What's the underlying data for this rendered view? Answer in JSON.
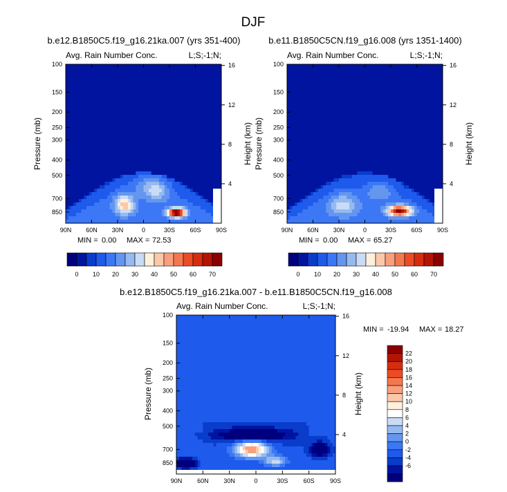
{
  "figure_title": "DJF",
  "colors": {
    "frame": "#000000",
    "bg": "#ffffff"
  },
  "chart_data": [
    {
      "type": "heatmap",
      "id": "panel1",
      "title": "b.e12.B1850C5.f19_g16.21ka.007 (yrs 351-400)",
      "subtitle_left": "Avg. Rain Number Conc.",
      "subtitle_right": "L;S;-1;N;",
      "ylabel": "Pressure (mb)",
      "ylabel_right": "Height (km)",
      "xticks": [
        "90N",
        "60N",
        "30N",
        "0",
        "30S",
        "60S",
        "90S"
      ],
      "x_values": [
        90,
        60,
        30,
        0,
        -30,
        -60,
        -90
      ],
      "pressure_ticks": [
        100,
        150,
        200,
        250,
        300,
        400,
        500,
        700,
        850
      ],
      "height_ticks": [
        16,
        12,
        8,
        4
      ],
      "ylim": [
        100,
        1000
      ],
      "stats": {
        "min_label": "MIN =",
        "min": "0.00",
        "max_label": "MAX =",
        "max": "72.53"
      },
      "features": [
        {
          "kind": "envelope",
          "lat_min": -70,
          "lat_max": 70,
          "level": 10
        },
        {
          "kind": "max",
          "lat": -38,
          "p": 850,
          "value": 72.53
        },
        {
          "kind": "local",
          "lat": 23,
          "p": 760,
          "value": 35
        },
        {
          "kind": "local",
          "lat": -15,
          "p": 640,
          "value": 20
        }
      ]
    },
    {
      "type": "heatmap",
      "id": "panel2",
      "title": "b.e11.B1850C5CN.f19_g16.008 (yrs 1351-1400)",
      "subtitle_left": "Avg. Rain Number Conc.",
      "subtitle_right": "L;S;-1;N;",
      "ylabel": "Pressure (mb)",
      "ylabel_right": "Height (km)",
      "xticks": [
        "90N",
        "60N",
        "30N",
        "0",
        "30S",
        "60S",
        "90S"
      ],
      "x_values": [
        90,
        60,
        30,
        0,
        -30,
        -60,
        -90
      ],
      "pressure_ticks": [
        100,
        150,
        200,
        250,
        300,
        400,
        500,
        700,
        850
      ],
      "height_ticks": [
        16,
        12,
        8,
        4
      ],
      "ylim": [
        100,
        1000
      ],
      "stats": {
        "min_label": "MIN =",
        "min": "0.00",
        "max_label": "MAX =",
        "max": "65.27"
      },
      "features": [
        {
          "kind": "envelope",
          "lat_min": -70,
          "lat_max": 75,
          "level": 10
        },
        {
          "kind": "max",
          "lat": -40,
          "p": 840,
          "value": 65.27
        },
        {
          "kind": "local",
          "lat": 25,
          "p": 780,
          "value": 25
        }
      ]
    },
    {
      "type": "heatmap",
      "id": "panel3",
      "title": "b.e12.B1850C5.f19_g16.21ka.007 - b.e11.B1850C5CN.f19_g16.008",
      "subtitle_left": "Avg. Rain Number Conc.",
      "subtitle_right": "L;S;-1;N;",
      "ylabel": "Pressure (mb)",
      "ylabel_right": "Height (km)",
      "xticks": [
        "90N",
        "60N",
        "30N",
        "0",
        "30S",
        "60S",
        "90S"
      ],
      "x_values": [
        90,
        60,
        30,
        0,
        -30,
        -60,
        -90
      ],
      "pressure_ticks": [
        100,
        150,
        200,
        250,
        300,
        400,
        500,
        700,
        850
      ],
      "height_ticks": [
        16,
        12,
        8,
        4
      ],
      "ylim": [
        100,
        1000
      ],
      "stats": {
        "min_label": "MIN =",
        "min": "-19.94",
        "max_label": "MAX =",
        "max": "18.27"
      },
      "features": [
        {
          "kind": "negative_band",
          "lat_min": -50,
          "lat_max": 70,
          "p": 520,
          "value": -6
        },
        {
          "kind": "max",
          "lat": 5,
          "p": 700,
          "value": 18.27
        },
        {
          "kind": "min",
          "lat": 78,
          "p": 860,
          "value": -19.94
        }
      ]
    }
  ],
  "colorbar_abs": {
    "labels": [
      "0",
      "10",
      "20",
      "30",
      "40",
      "50",
      "60",
      "70"
    ],
    "colors": [
      "#00007f",
      "#0014a0",
      "#0a3ccc",
      "#1e5aeb",
      "#3c78f5",
      "#6496f0",
      "#96b9f0",
      "#c8dcf5",
      "#fff0dc",
      "#fcc8aa",
      "#f8a07d",
      "#f4784f",
      "#ec4c23",
      "#d72d0f",
      "#b41404",
      "#8c0000"
    ]
  },
  "colorbar_diff": {
    "labels": [
      "22",
      "20",
      "18",
      "16",
      "14",
      "12",
      "10",
      "8",
      "6",
      "4",
      "2",
      "0",
      "-2",
      "-4",
      "-6"
    ],
    "colors": [
      "#8c0000",
      "#b41404",
      "#d72d0f",
      "#ec4c23",
      "#f4784f",
      "#f8a07d",
      "#fcc8aa",
      "#fff0dc",
      "#ffffff",
      "#c8dcf5",
      "#96b9f0",
      "#6496f0",
      "#3c78f5",
      "#1e5aeb",
      "#0a3ccc",
      "#0014a0",
      "#00007f"
    ]
  }
}
